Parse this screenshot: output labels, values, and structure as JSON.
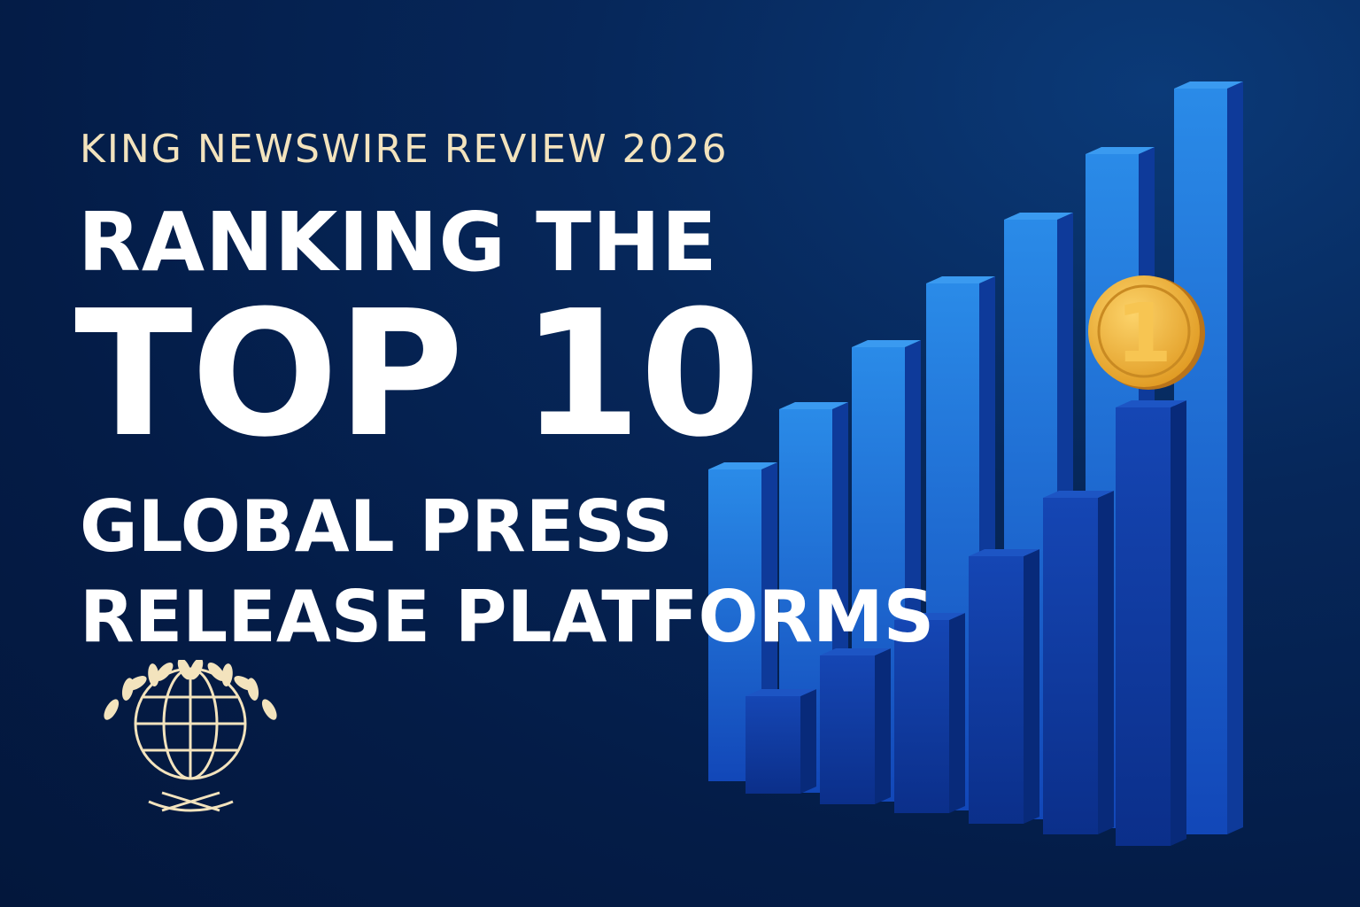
{
  "header": {
    "kicker": "KING NEWSWIRE REVIEW 2026"
  },
  "headline": {
    "line1": "RANKING THE",
    "line2": "TOP 10",
    "line3": "GLOBAL PRESS",
    "line4": "RELEASE PLATFORMS"
  },
  "medal": {
    "label": "1",
    "color": "#f2b53a"
  },
  "colors": {
    "background": "#041c47",
    "accent": "#f3e3bd",
    "bar_back": "#1e73d6",
    "bar_front": "#0e3da6"
  },
  "icons": [
    "globe-icon",
    "laurel-wreath-icon",
    "gold-medal-icon",
    "bar-graph-illustration"
  ]
}
